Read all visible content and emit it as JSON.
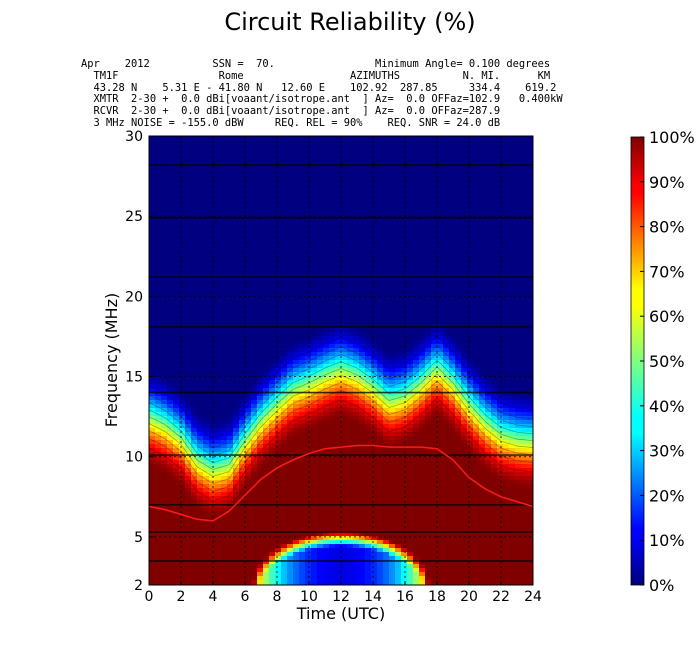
{
  "chart_data": {
    "type": "heatmap",
    "title": "Circuit Reliability (%)",
    "header_lines": [
      "Apr    2012          SSN =  70.                Minimum Angle= 0.100 degrees",
      "  TM1F                Rome                 AZIMUTHS          N. MI.      KM",
      "  43.28 N    5.31 E - 41.80 N   12.60 E    102.92  287.85     334.4    619.2",
      "  XMTR  2-30 +  0.0 dBi[voaant/isotrope.ant  ] Az=  0.0 OFFaz=102.9   0.400kW",
      "  RCVR  2-30 +  0.0 dBi[voaant/isotrope.ant  ] Az=  0.0 OFFaz=287.9",
      "  3 MHz NOISE = -155.0 dBW     REQ. REL = 90%    REQ. SNR = 24.0 dB"
    ],
    "xlabel": "Time (UTC)",
    "ylabel": "Frequency (MHz)",
    "xlim": [
      0,
      24
    ],
    "ylim": [
      2,
      30
    ],
    "x_ticks": [
      "0",
      "2",
      "4",
      "6",
      "8",
      "10",
      "12",
      "14",
      "16",
      "18",
      "20",
      "22",
      "24"
    ],
    "y_ticks": [
      "2",
      "5",
      "10",
      "15",
      "20",
      "25",
      "30"
    ],
    "colorbar": {
      "ticks": [
        "0%",
        "10%",
        "20%",
        "30%",
        "40%",
        "50%",
        "60%",
        "70%",
        "80%",
        "90%",
        "100%"
      ],
      "range": [
        0,
        100
      ]
    },
    "hours": [
      0,
      1,
      2,
      3,
      4,
      5,
      6,
      7,
      8,
      9,
      10,
      11,
      12,
      13,
      14,
      15,
      16,
      17,
      18,
      19,
      20,
      21,
      22,
      23,
      24
    ],
    "upper_edge_mhz": [
      12.5,
      12.0,
      11.2,
      9.8,
      9.2,
      9.5,
      11.0,
      12.3,
      13.3,
      14.2,
      14.6,
      15.1,
      15.5,
      15.1,
      14.4,
      13.5,
      13.8,
      14.6,
      15.6,
      14.6,
      13.3,
      12.2,
      11.4,
      11.1,
      11.0
    ],
    "lower_region": {
      "center_hour": 12,
      "half_width_hours": 5.5,
      "top_mhz": 5.3,
      "min_reliability": 10
    },
    "median_muf": {
      "x": [
        0,
        1,
        2,
        3,
        4,
        5,
        6,
        7,
        8,
        9,
        10,
        11,
        12,
        13,
        14,
        15,
        16,
        17,
        18,
        19,
        20,
        21,
        22,
        23,
        24
      ],
      "y": [
        6.9,
        6.7,
        6.4,
        6.1,
        6.0,
        6.6,
        7.6,
        8.6,
        9.3,
        9.8,
        10.2,
        10.5,
        10.6,
        10.7,
        10.7,
        10.6,
        10.6,
        10.6,
        10.5,
        9.8,
        8.7,
        8.0,
        7.5,
        7.2,
        6.9
      ],
      "color": "#ff1a1a"
    },
    "horizontal_lines_mhz": [
      3.5,
      5.3,
      7.0,
      10.1,
      14.0,
      18.1,
      21.2,
      24.9,
      28.2
    ],
    "colors": {
      "background": "#00007f",
      "high_reliability": "#7f0000",
      "grid": "#000000"
    }
  }
}
